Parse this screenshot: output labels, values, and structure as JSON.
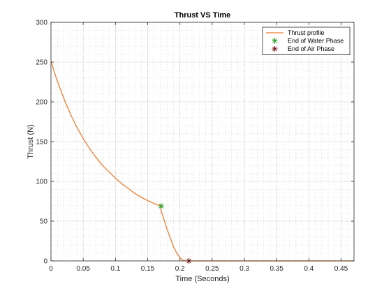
{
  "chart_data": {
    "type": "line",
    "title": "Thrust VS Time",
    "xlabel": "Time (Seconds)",
    "ylabel": "Thrust (N)",
    "xlim": [
      0,
      0.47
    ],
    "ylim": [
      0,
      300
    ],
    "x_ticks": [
      0,
      0.05,
      0.1,
      0.15,
      0.2,
      0.25,
      0.3,
      0.35,
      0.4,
      0.45
    ],
    "x_tick_labels": [
      "0",
      "0.05",
      "0.1",
      "0.15",
      "0.2",
      "0.25",
      "0.3",
      "0.35",
      "0.4",
      "0.45"
    ],
    "y_ticks": [
      0,
      50,
      100,
      150,
      200,
      250,
      300
    ],
    "y_tick_labels": [
      "0",
      "50",
      "100",
      "150",
      "200",
      "250",
      "300"
    ],
    "grid": true,
    "minor_grid": true,
    "legend_position": "top-right",
    "series": [
      {
        "name": "Thrust profile",
        "style": "line",
        "color": "#ED7D31",
        "x": [
          0,
          0.005,
          0.01,
          0.02,
          0.03,
          0.04,
          0.05,
          0.06,
          0.07,
          0.08,
          0.09,
          0.1,
          0.11,
          0.12,
          0.13,
          0.14,
          0.15,
          0.16,
          0.17,
          0.171,
          0.173,
          0.176,
          0.18,
          0.185,
          0.19,
          0.195,
          0.2,
          0.203,
          0.206,
          0.21,
          0.215,
          0.25,
          0.3,
          0.35,
          0.4,
          0.45,
          0.47
        ],
        "y": [
          251,
          238,
          226,
          204,
          185,
          168,
          154,
          141,
          130,
          120,
          112,
          104,
          97,
          91,
          85,
          80,
          76,
          72,
          69,
          62,
          58,
          50,
          40,
          29,
          18,
          10,
          4,
          1.5,
          0.5,
          0,
          0,
          0,
          0,
          0,
          0,
          0,
          0
        ]
      },
      {
        "name": "End of Water Phase",
        "style": "marker",
        "marker": "*",
        "color": "#2CA02C",
        "x": [
          0.171
        ],
        "y": [
          69
        ]
      },
      {
        "name": "End of Air Phase",
        "style": "marker",
        "marker": "*",
        "color": "#7F1D1D",
        "x": [
          0.214
        ],
        "y": [
          0
        ]
      }
    ]
  }
}
